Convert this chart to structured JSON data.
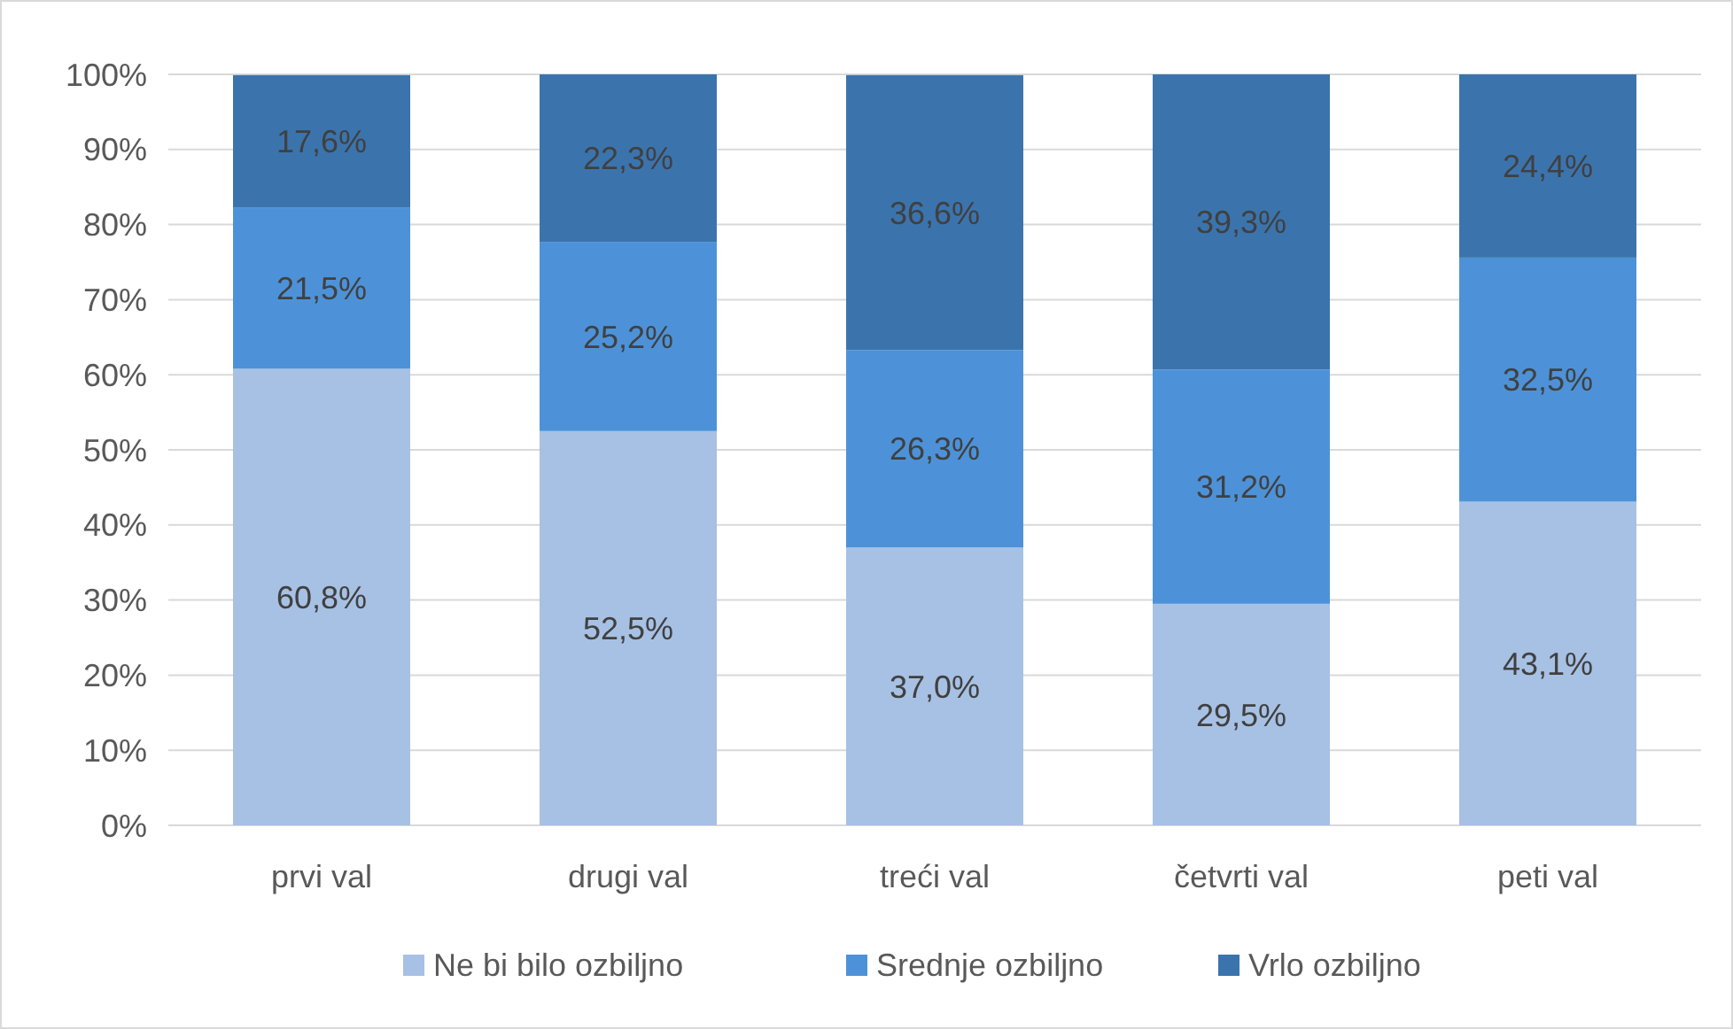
{
  "chart_data": {
    "type": "bar",
    "stacked": true,
    "categories": [
      "prvi val",
      "drugi val",
      "treći val",
      "četvrti val",
      "peti val"
    ],
    "series": [
      {
        "name": "Ne bi bilo ozbiljno",
        "color": "#a7c1e4",
        "values": [
          60.8,
          52.5,
          37.0,
          29.5,
          43.1
        ],
        "value_labels": [
          "60,8%",
          "52,5%",
          "37,0%",
          "29,5%",
          "43,1%"
        ]
      },
      {
        "name": "Srednje ozbiljno",
        "color": "#4d92d8",
        "values": [
          21.5,
          25.2,
          26.3,
          31.2,
          32.5
        ],
        "value_labels": [
          "21,5%",
          "25,2%",
          "26,3%",
          "31,2%",
          "32,5%"
        ]
      },
      {
        "name": "Vrlo ozbiljno",
        "color": "#3b74ad",
        "values": [
          17.6,
          22.3,
          36.6,
          39.3,
          24.4
        ],
        "value_labels": [
          "17,6%",
          "22,3%",
          "36,6%",
          "39,3%",
          "24,4%"
        ]
      }
    ],
    "ylim": [
      0,
      100
    ],
    "yticks": [
      {
        "value": 0,
        "label": "0%"
      },
      {
        "value": 10,
        "label": "10%"
      },
      {
        "value": 20,
        "label": "20%"
      },
      {
        "value": 30,
        "label": "30%"
      },
      {
        "value": 40,
        "label": "40%"
      },
      {
        "value": 50,
        "label": "50%"
      },
      {
        "value": 60,
        "label": "60%"
      },
      {
        "value": 70,
        "label": "70%"
      },
      {
        "value": 80,
        "label": "80%"
      },
      {
        "value": 90,
        "label": "90%"
      },
      {
        "value": 100,
        "label": "100%"
      }
    ],
    "grid": "y",
    "legend": "bottom"
  }
}
